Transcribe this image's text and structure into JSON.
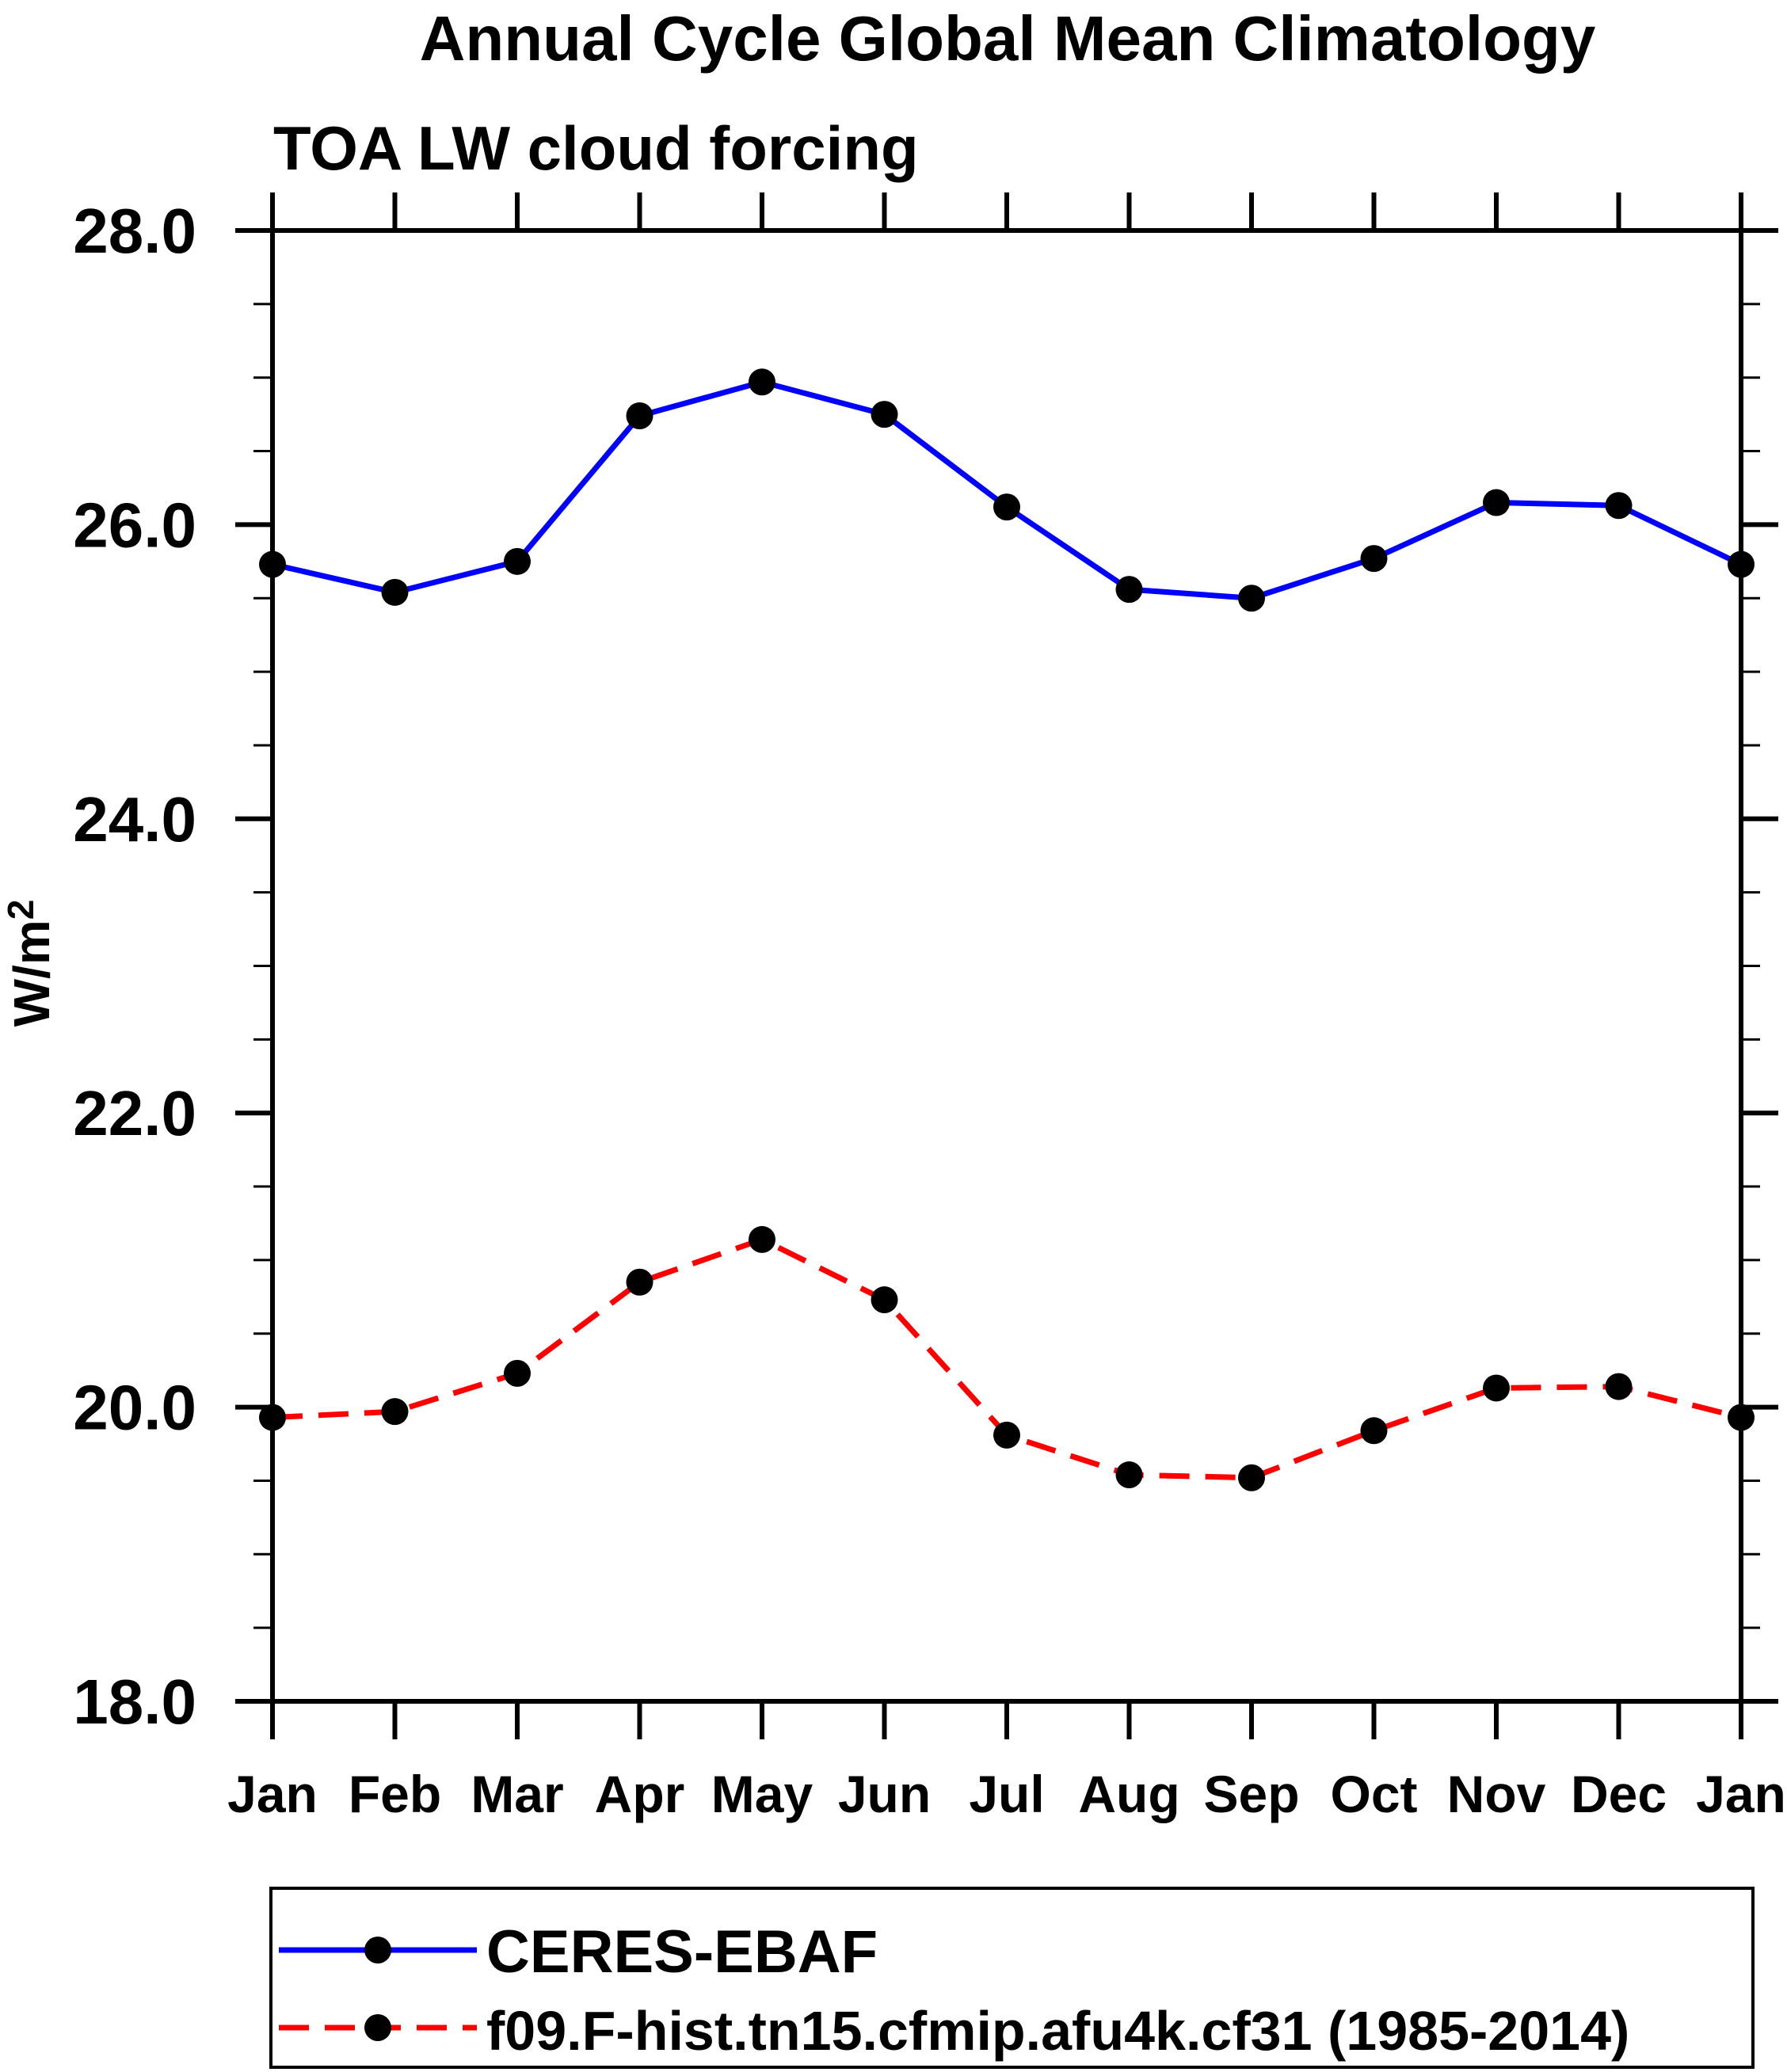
{
  "chart_data": {
    "type": "line",
    "title": "Annual Cycle Global Mean Climatology",
    "subtitle": "TOA LW cloud forcing",
    "ylabel_base": "W/m",
    "ylabel_exp": "2",
    "categories": [
      "Jan",
      "Feb",
      "Mar",
      "Apr",
      "May",
      "Jun",
      "Jul",
      "Aug",
      "Sep",
      "Oct",
      "Nov",
      "Dec",
      "Jan"
    ],
    "ylim": [
      18.0,
      28.0
    ],
    "y_major_step": 2.0,
    "y_minor_step": 0.5,
    "y_tick_decimals": 1,
    "y_major_tick_labels": [
      "18.0",
      "20.0",
      "22.0",
      "24.0",
      "26.0",
      "28.0"
    ],
    "grid": false,
    "legend_position": "bottom-left-box",
    "axis_color": "#000000",
    "marker_color": "#000000",
    "series": [
      {
        "name": "CERES-EBAF",
        "color": "#0000ff",
        "line_style": "solid",
        "marker": "circle",
        "values": [
          25.73,
          25.54,
          25.75,
          26.74,
          26.97,
          26.75,
          26.12,
          25.56,
          25.5,
          25.77,
          26.15,
          26.13,
          25.73
        ]
      },
      {
        "name": "f09.F-hist.tn15.cfmip.afu4k.cf31 (1985-2014)",
        "color": "#ff0000",
        "line_style": "dashed",
        "marker": "circle",
        "values": [
          19.93,
          19.97,
          20.23,
          20.85,
          21.14,
          20.73,
          19.81,
          19.54,
          19.52,
          19.84,
          20.13,
          20.14,
          19.93
        ]
      }
    ]
  }
}
